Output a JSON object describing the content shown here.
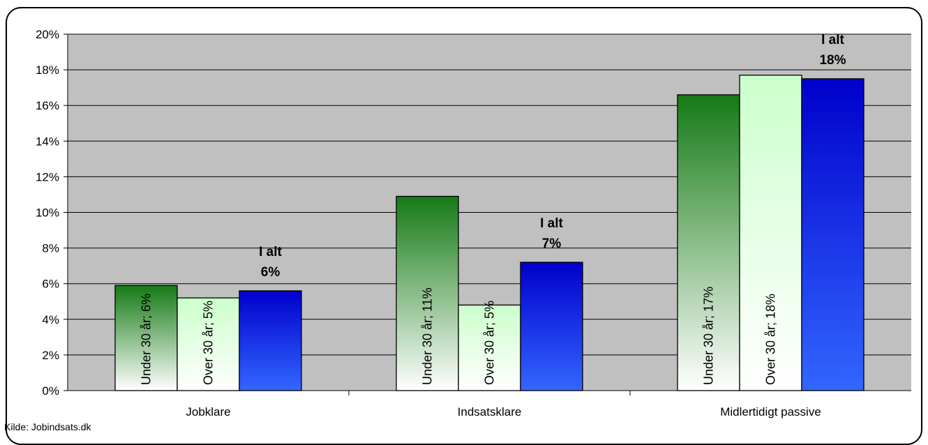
{
  "source_note": "Kilde: Jobindsats.dk",
  "chart_data": {
    "type": "bar",
    "categories": [
      "Jobklare",
      "Indsatsklare",
      "Midlertidigt passive"
    ],
    "ylim": [
      0,
      0.2
    ],
    "yticks": [
      0,
      0.02,
      0.04,
      0.06,
      0.08,
      0.1,
      0.12,
      0.14,
      0.16,
      0.18,
      0.2
    ],
    "ytick_labels": [
      "0%",
      "2%",
      "4%",
      "6%",
      "8%",
      "10%",
      "12%",
      "14%",
      "16%",
      "18%",
      "20%"
    ],
    "grid": true,
    "series": [
      {
        "key": "under30",
        "values": [
          0.059,
          0.109,
          0.166
        ],
        "labels": [
          "Under 30 år; 6%",
          "Under 30 år; 11%",
          "Under 30 år; 17%"
        ],
        "colors": [
          "#157a15",
          "#ffffff"
        ]
      },
      {
        "key": "over30",
        "values": [
          0.052,
          0.048,
          0.177
        ],
        "labels": [
          "Over 30 år; 5%",
          "Over 30 år; 5%",
          "Over 30 år; 18%"
        ],
        "colors": [
          "#ccffcc",
          "#ffffff"
        ]
      },
      {
        "key": "ialt",
        "values": [
          0.056,
          0.072,
          0.175
        ],
        "labels": [
          "I alt\n6%",
          "I alt\n7%",
          "I alt\n18%"
        ],
        "colors": [
          "#0000cc",
          "#3366ff"
        ]
      }
    ]
  }
}
